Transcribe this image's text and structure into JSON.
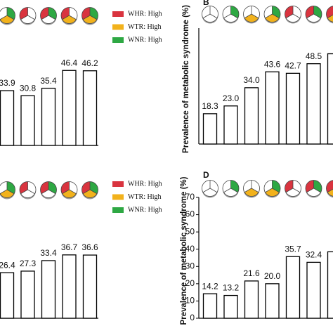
{
  "chart_data": [
    {
      "type": "bar",
      "values": [
        33.9,
        30.8,
        35.4,
        46.4,
        46.2
      ],
      "ylim": [
        0,
        70
      ],
      "legend": [
        {
          "label": "WHR: High",
          "color": "#d9343f"
        },
        {
          "label": "WTR: High",
          "color": "#f2b21c"
        },
        {
          "label": "WNR: High",
          "color": "#2ea843"
        }
      ]
    },
    {
      "type": "bar",
      "panel": "B",
      "ylabel": "Prevalence of metabolic syndrome (%)",
      "values": [
        18.3,
        23.0,
        34.0,
        43.6,
        42.7,
        48.5,
        54.5
      ],
      "value_labels": [
        "18.3",
        "23.0",
        "34.0",
        "43.6",
        "42.7",
        "48.5",
        null
      ],
      "ylim": [
        0,
        70
      ]
    },
    {
      "type": "bar",
      "values": [
        26.4,
        27.3,
        33.4,
        36.7,
        36.6
      ],
      "ylim": [
        0,
        70
      ],
      "legend": [
        {
          "label": "WHR: High",
          "color": "#d9343f"
        },
        {
          "label": "WTR: High",
          "color": "#f2b21c"
        },
        {
          "label": "WNR: High",
          "color": "#2ea843"
        }
      ]
    },
    {
      "type": "bar",
      "panel": "D",
      "ylabel": "Prevalence of metabolic syndrome (%)",
      "values": [
        14.2,
        13.2,
        21.6,
        20.0,
        35.7,
        32.4,
        38.5
      ],
      "value_labels": [
        "14.2",
        "13.2",
        "21.6",
        "20.0",
        "35.7",
        "32.4",
        null
      ],
      "ylim": [
        0,
        70
      ],
      "yticks": [
        0,
        10,
        20,
        30,
        40,
        50,
        60,
        70
      ]
    }
  ]
}
